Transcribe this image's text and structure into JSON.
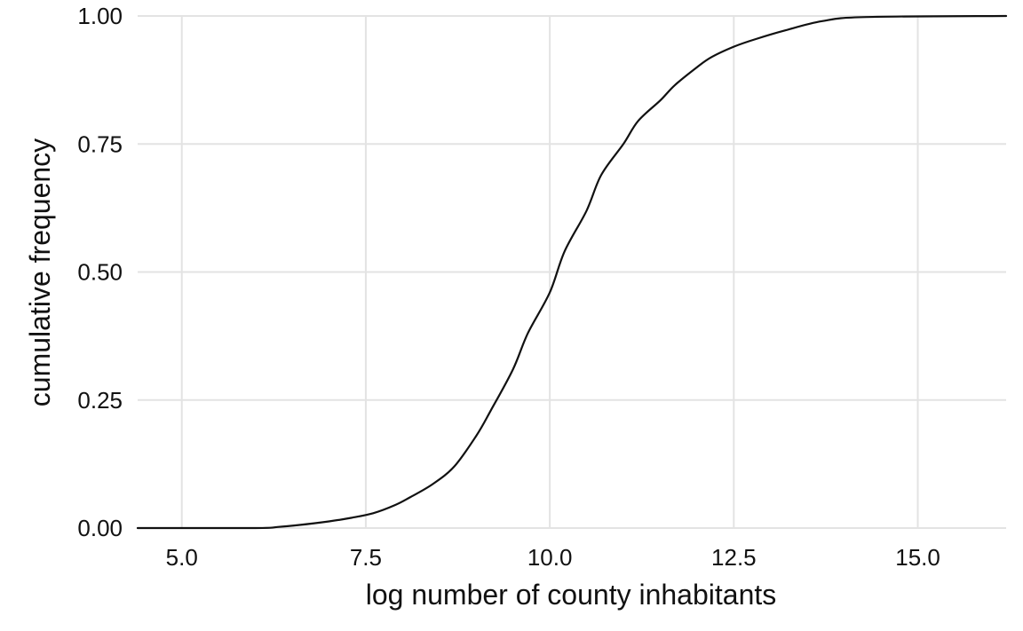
{
  "chart_data": {
    "type": "line",
    "title": "",
    "xlabel": "log number of county inhabitants",
    "ylabel": "cumulative frequency",
    "xlim": [
      4.4,
      16.2
    ],
    "ylim": [
      0,
      1
    ],
    "x_ticks": [
      5.0,
      7.5,
      10.0,
      12.5,
      15.0
    ],
    "x_tick_labels": [
      "5.0",
      "7.5",
      "10.0",
      "12.5",
      "15.0"
    ],
    "y_ticks": [
      0,
      0.25,
      0.5,
      0.75,
      1.0
    ],
    "y_tick_labels": [
      "0.00",
      "0.25",
      "0.50",
      "0.75",
      "1.00"
    ],
    "grid": true,
    "legend": "none",
    "series": [
      {
        "x": [
          4.4,
          6.0,
          6.3,
          6.6,
          7.0,
          7.3,
          7.6,
          7.9,
          8.1,
          8.4,
          8.7,
          9.0,
          9.2,
          9.5,
          9.7,
          10.0,
          10.2,
          10.5,
          10.7,
          11.0,
          11.2,
          11.5,
          11.7,
          12.0,
          12.2,
          12.5,
          12.8,
          13.2,
          13.7,
          14.3,
          16.2
        ],
        "y": [
          0.0,
          0.0,
          0.002,
          0.006,
          0.013,
          0.02,
          0.029,
          0.045,
          0.06,
          0.085,
          0.12,
          0.18,
          0.23,
          0.31,
          0.38,
          0.46,
          0.54,
          0.62,
          0.69,
          0.75,
          0.795,
          0.835,
          0.865,
          0.9,
          0.92,
          0.94,
          0.955,
          0.972,
          0.99,
          0.998,
          1.0
        ],
        "color": "#111111"
      }
    ]
  }
}
